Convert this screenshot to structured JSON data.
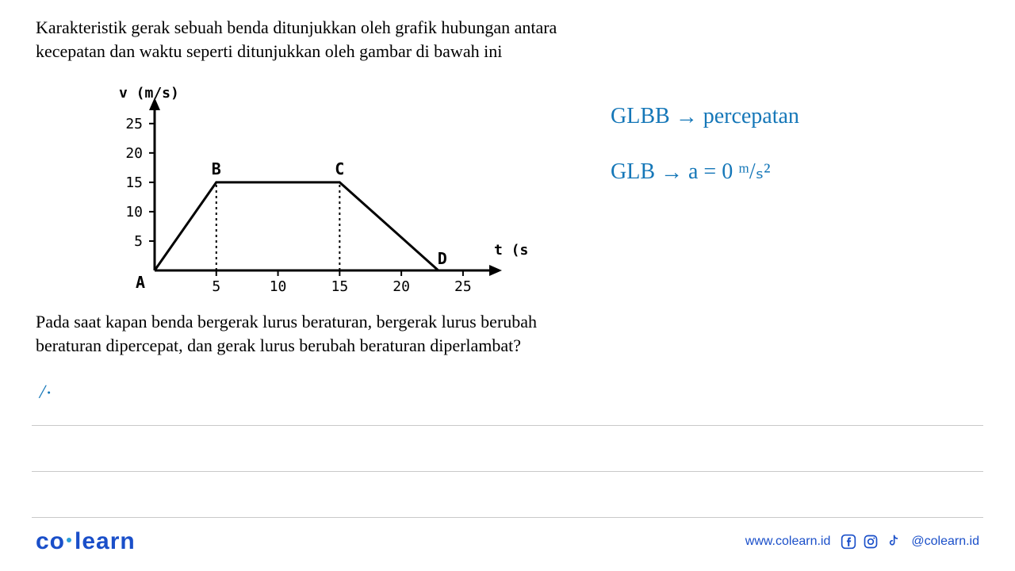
{
  "question": {
    "line1": "Karakteristik gerak sebuah benda ditunjukkan oleh grafik hubungan antara",
    "line2": "kecepatan dan waktu seperti ditunjukkan oleh gambar di bawah ini",
    "followup1": "Pada saat kapan benda bergerak lurus beraturan, bergerak lurus berubah",
    "followup2": "beraturan dipercepat, dan gerak lurus berubah beraturan diperlambat?"
  },
  "chart": {
    "type": "line",
    "y_label": "v (m/s)",
    "x_label": "t (s)",
    "x_ticks": [
      5,
      10,
      15,
      20,
      25
    ],
    "y_ticks": [
      5,
      10,
      15,
      20,
      25
    ],
    "xlim": [
      0,
      27
    ],
    "ylim": [
      0,
      27
    ],
    "points": {
      "A": {
        "x": 0,
        "y": 0,
        "label": "A",
        "label_pos": "below-left"
      },
      "B": {
        "x": 5,
        "y": 15,
        "label": "B",
        "label_pos": "above"
      },
      "C": {
        "x": 15,
        "y": 15,
        "label": "C",
        "label_pos": "above"
      },
      "D": {
        "x": 23,
        "y": 0,
        "label": "D",
        "label_pos": "above-right"
      }
    },
    "line_segments": [
      {
        "from": "A",
        "to": "B"
      },
      {
        "from": "B",
        "to": "C"
      },
      {
        "from": "C",
        "to": "D"
      }
    ],
    "dashed_lines": [
      {
        "x": 5,
        "y_from": 0,
        "y_to": 15
      },
      {
        "x": 15,
        "y_from": 0,
        "y_to": 15
      }
    ],
    "stroke_color": "#000000",
    "stroke_width": 3,
    "axis_stroke_width": 3,
    "tick_fontsize": 18,
    "label_fontsize": 18,
    "point_label_fontsize": 20
  },
  "handwriting": {
    "note1_prefix": "GLBB",
    "note1_arrow": "→",
    "note1_text": "percepatan",
    "note2_prefix": "GLB",
    "note2_arrow": "→",
    "note2_text": "a = 0 ᵐ/ₛ²",
    "tick": "/·",
    "color": "#1577b8"
  },
  "footer": {
    "logo_co": "co",
    "logo_learn": "learn",
    "url": "www.colearn.id",
    "handle": "@colearn.id"
  }
}
